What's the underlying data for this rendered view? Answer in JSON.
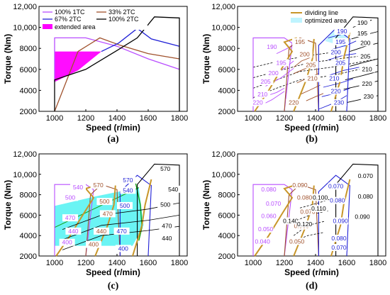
{
  "chart_data": [
    {
      "panel": "(a)",
      "type": "line",
      "xlabel": "Speed (r/min)",
      "ylabel": "Torque (Nm)",
      "xlim": [
        900,
        1850
      ],
      "ylim": [
        2000,
        12000
      ],
      "xticks": [
        "1000",
        "1200",
        "1400",
        "1600",
        "1800"
      ],
      "yticks": [
        "2000",
        "4000",
        "6000",
        "8000",
        "10,000",
        "12,000"
      ],
      "legend": [
        "100%  1TC",
        "33%  2TC",
        "67%  2TC",
        "100%  2TC",
        "extended area"
      ],
      "series": [
        {
          "name": "100%  1TC",
          "color": "#b84dff",
          "x": [
            1000,
            1000,
            1200,
            1400,
            1600,
            1800
          ],
          "y": [
            4800,
            9000,
            9000,
            8200,
            7000,
            6000
          ]
        },
        {
          "name": "33%  2TC",
          "color": "#a0522d",
          "x": [
            1000,
            1150,
            1290,
            1420,
            1600,
            1800
          ],
          "y": [
            2000,
            7700,
            9000,
            8300,
            7500,
            7000
          ]
        },
        {
          "name": "67%  2TC",
          "color": "#1f1fd6",
          "x": [
            1300,
            1410,
            1530,
            1620,
            1800
          ],
          "y": [
            7700,
            8500,
            9900,
            8900,
            8200
          ]
        },
        {
          "name": "100%  2TC",
          "color": "#000000",
          "x": [
            1000,
            1000,
            1200,
            1400,
            1530,
            1640,
            1800,
            1800
          ],
          "y": [
            2000,
            5000,
            6000,
            7800,
            9000,
            11000,
            10900,
            2000
          ]
        }
      ],
      "extended_area": {
        "name": "extended area",
        "color": "#ff00ff",
        "x": [
          1000,
          1000,
          1400,
          1300,
          1150,
          1000
        ],
        "y": [
          4800,
          7700,
          7700,
          7700,
          5900,
          4800
        ]
      }
    },
    {
      "panel": "(b)",
      "type": "line",
      "xlabel": "Speed (r/min)",
      "ylabel": "Torque (Nm)",
      "xlim": [
        900,
        1850
      ],
      "ylim": [
        2000,
        12000
      ],
      "xticks": [
        "1000",
        "1200",
        "1400",
        "1600",
        "1800"
      ],
      "yticks": [
        "2000",
        "4000",
        "6000",
        "8000",
        "10,000",
        "12,000"
      ],
      "legend": [
        "dividing line",
        "optimized area"
      ],
      "contour_labels": {
        "purple": [
          "190",
          "195",
          "200",
          "205",
          "210",
          "220"
        ],
        "brown": [
          "195",
          "200",
          "205",
          "210",
          "220"
        ],
        "blue": [
          "190",
          "195",
          "200",
          "205",
          "210",
          "220",
          "230"
        ],
        "black": [
          "190",
          "195",
          "200",
          "205",
          "210",
          "220",
          "230"
        ]
      }
    },
    {
      "panel": "(c)",
      "type": "line",
      "xlabel": "Speed (r/min)",
      "ylabel": "Torque (Nm)",
      "xlim": [
        900,
        1850
      ],
      "ylim": [
        2000,
        12000
      ],
      "xticks": [
        "1000",
        "1200",
        "1400",
        "1600",
        "1800"
      ],
      "yticks": [
        "2000",
        "4000",
        "6000",
        "8000",
        "10,000",
        "12,000"
      ],
      "contour_labels": {
        "purple": [
          "540",
          "500",
          "470",
          "440",
          "400"
        ],
        "brown": [
          "570",
          "500",
          "470",
          "440",
          "400"
        ],
        "blue": [
          "570",
          "540",
          "500",
          "470",
          "400"
        ],
        "black": [
          "570",
          "540",
          "500",
          "470",
          "440"
        ]
      }
    },
    {
      "panel": "(d)",
      "type": "line",
      "xlabel": "Speed (r/min)",
      "ylabel": "Torque (Nm)",
      "xlim": [
        900,
        1850
      ],
      "ylim": [
        2000,
        12000
      ],
      "xticks": [
        "1000",
        "1200",
        "1400",
        "1600",
        "1800"
      ],
      "yticks": [
        "2000",
        "4000",
        "6000",
        "8000",
        "10,000",
        "12,000"
      ],
      "contour_labels": {
        "purple": [
          "0.080",
          "0.070",
          "0.060",
          "0.050",
          "0.040"
        ],
        "brown": [
          "0.090",
          "0.080",
          "0.070",
          "0.060",
          "0.050"
        ],
        "blue": [
          "0.070",
          "0.080",
          "0.090",
          "0.080",
          "0.070"
        ],
        "black": [
          "0.070",
          "0.080",
          "0.090"
        ],
        "small": [
          "0.100",
          "0.110",
          "0.140",
          "0.120"
        ]
      }
    }
  ]
}
